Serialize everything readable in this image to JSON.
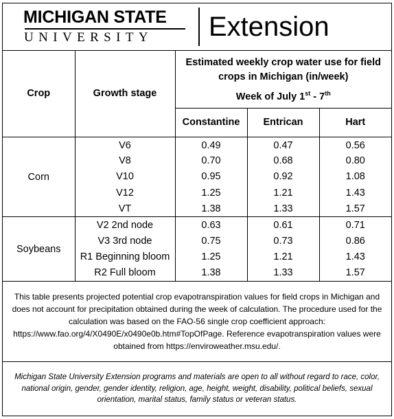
{
  "logo": {
    "line1": "MICHIGAN STATE",
    "line2": "UNIVERSITY",
    "extension": "Extension"
  },
  "table": {
    "title": "Estimated weekly crop water use for field crops in Michigan (in/week)",
    "week_prefix": "Week of July 1",
    "week_sup1": "st",
    "week_mid": " - 7",
    "week_sup2": "th",
    "col_crop": "Crop",
    "col_stage": "Growth stage",
    "locations": [
      "Constantine",
      "Entrican",
      "Hart"
    ],
    "groups": [
      {
        "crop": "Corn",
        "rows": [
          {
            "stage": "V6",
            "values": [
              "0.49",
              "0.47",
              "0.56"
            ]
          },
          {
            "stage": "V8",
            "values": [
              "0.70",
              "0.68",
              "0.80"
            ]
          },
          {
            "stage": "V10",
            "values": [
              "0.95",
              "0.92",
              "1.08"
            ]
          },
          {
            "stage": "V12",
            "values": [
              "1.25",
              "1.21",
              "1.43"
            ]
          },
          {
            "stage": "VT",
            "values": [
              "1.38",
              "1.33",
              "1.57"
            ]
          }
        ]
      },
      {
        "crop": "Soybeans",
        "rows": [
          {
            "stage": "V2 2nd node",
            "values": [
              "0.63",
              "0.61",
              "0.71"
            ]
          },
          {
            "stage": "V3 3rd node",
            "values": [
              "0.75",
              "0.73",
              "0.86"
            ]
          },
          {
            "stage": "R1 Beginning bloom",
            "values": [
              "1.25",
              "1.21",
              "1.43"
            ]
          },
          {
            "stage": "R2 Full bloom",
            "values": [
              "1.38",
              "1.33",
              "1.57"
            ]
          }
        ]
      }
    ]
  },
  "note": "This table presents projected potential crop evapotranspiration values for field crops in Michigan and does not account for precipitation obtained during the week of calculation. The procedure used for the calculation was based on the FAO-56 single crop coefficient approach: https://www.fao.org/4/X0490E/x0490e0b.htm#TopOfPage.  Reference evapotranspiration values were obtained from https://enviroweather.msu.edu/.",
  "disclaimer": "Michigan State University Extension programs and materials are open to all without regard to race, color, national origin, gender, gender identity, religion, age, height, weight, disability, political beliefs, sexual orientation, marital status, family status or veteran status."
}
